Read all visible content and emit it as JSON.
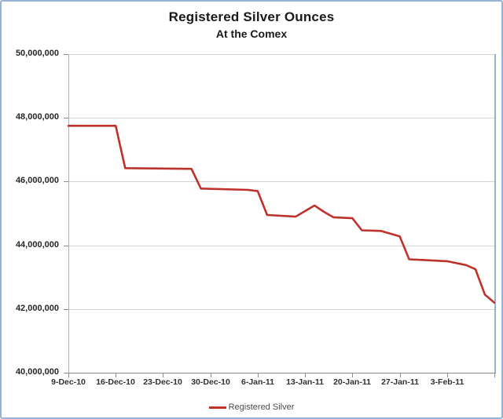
{
  "title": "Registered Silver Ounces",
  "subtitle": "At the Comex",
  "legend": {
    "label": "Registered Silver"
  },
  "colors": {
    "line": "#be322b",
    "chart_border": "#95b3d7",
    "gridline": "#d4d4d4",
    "axis": "#8c8c8c",
    "tick_text": "#262626"
  },
  "chart_data": {
    "type": "line",
    "title": "Registered Silver Ounces",
    "subtitle": "At the Comex",
    "xlabel": "",
    "ylabel": "",
    "ylim": [
      40000000,
      50000000
    ],
    "y_tick_interval": 2000000,
    "y_tick_values": [
      50000000,
      48000000,
      46000000,
      44000000,
      42000000,
      40000000
    ],
    "y_tick_labels": [
      "50,000,000",
      "48,000,000",
      "46,000,000",
      "44,000,000",
      "42,000,000",
      "40,000,000"
    ],
    "x_tick_labels": [
      "9-Dec-10",
      "16-Dec-10",
      "23-Dec-10",
      "30-Dec-10",
      "6-Jan-11",
      "13-Jan-11",
      "20-Jan-11",
      "27-Jan-11",
      "3-Feb-11"
    ],
    "x_tick_every_n_points": 5,
    "grid": "horizontal-only",
    "legend_position": "bottom-center",
    "series": [
      {
        "name": "Registered Silver",
        "points": [
          {
            "day_index": 0,
            "date": "9-Dec-10",
            "value": 47750000
          },
          {
            "day_index": 5,
            "date": "16-Dec-10",
            "value": 47750000
          },
          {
            "day_index": 6,
            "date": "17-Dec-10",
            "value": 46420000
          },
          {
            "day_index": 13,
            "date": "28-Dec-10",
            "value": 46400000
          },
          {
            "day_index": 14,
            "date": "29-Dec-10",
            "value": 45780000
          },
          {
            "day_index": 19,
            "date": "5-Jan-11",
            "value": 45740000
          },
          {
            "day_index": 20,
            "date": "6-Jan-11",
            "value": 45700000
          },
          {
            "day_index": 21,
            "date": "7-Jan-11",
            "value": 44950000
          },
          {
            "day_index": 24,
            "date": "12-Jan-11",
            "value": 44900000
          },
          {
            "day_index": 26,
            "date": "14-Jan-11",
            "value": 45250000
          },
          {
            "day_index": 27,
            "date": "17-Jan-11",
            "value": 45050000
          },
          {
            "day_index": 28,
            "date": "18-Jan-11",
            "value": 44880000
          },
          {
            "day_index": 30,
            "date": "20-Jan-11",
            "value": 44850000
          },
          {
            "day_index": 31,
            "date": "21-Jan-11",
            "value": 44470000
          },
          {
            "day_index": 33,
            "date": "25-Jan-11",
            "value": 44450000
          },
          {
            "day_index": 35,
            "date": "27-Jan-11",
            "value": 44280000
          },
          {
            "day_index": 36,
            "date": "28-Jan-11",
            "value": 43560000
          },
          {
            "day_index": 38,
            "date": "1-Feb-11",
            "value": 43530000
          },
          {
            "day_index": 40,
            "date": "3-Feb-11",
            "value": 43500000
          },
          {
            "day_index": 42,
            "date": "7-Feb-11",
            "value": 43380000
          },
          {
            "day_index": 43,
            "date": "8-Feb-11",
            "value": 43250000
          },
          {
            "day_index": 44,
            "date": "9-Feb-11",
            "value": 42450000
          },
          {
            "day_index": 45,
            "date": "10-Feb-11",
            "value": 42200000
          }
        ]
      }
    ]
  }
}
